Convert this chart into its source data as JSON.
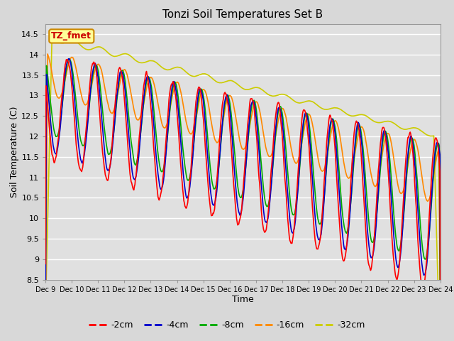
{
  "title": "Tonzi Soil Temperatures Set B",
  "xlabel": "Time",
  "ylabel": "Soil Temperature (C)",
  "ylim": [
    8.5,
    14.75
  ],
  "xlim": [
    0,
    360
  ],
  "fig_bg_color": "#d8d8d8",
  "plot_bg_color": "#e0e0e0",
  "xtick_labels": [
    "Dec 9",
    "Dec 10",
    "Dec 11",
    "Dec 12",
    "Dec 13",
    "Dec 14",
    "Dec 15",
    "Dec 16",
    "Dec 17",
    "Dec 18",
    "Dec 19",
    "Dec 20",
    "Dec 21",
    "Dec 22",
    "Dec 23",
    "Dec 24"
  ],
  "ytick_vals": [
    8.5,
    9.0,
    9.5,
    10.0,
    10.5,
    11.0,
    11.5,
    12.0,
    12.5,
    13.0,
    13.5,
    14.0,
    14.5
  ],
  "legend_label": "TZ_fmet",
  "legend_bg": "#ffff99",
  "legend_border": "#cc8800",
  "series": {
    "-2cm": {
      "color": "#ff0000",
      "lw": 1.2
    },
    "-4cm": {
      "color": "#0000cc",
      "lw": 1.2
    },
    "-8cm": {
      "color": "#00aa00",
      "lw": 1.2
    },
    "-16cm": {
      "color": "#ff8800",
      "lw": 1.2
    },
    "-32cm": {
      "color": "#cccc00",
      "lw": 1.2
    }
  }
}
